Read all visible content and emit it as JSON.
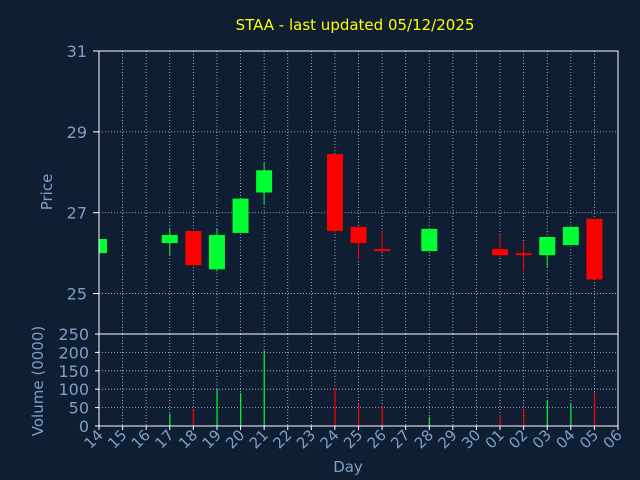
{
  "colors": {
    "background": "#0f1e33",
    "plot_border": "#ffffff",
    "grid": "#bfc8d6",
    "title": "#ffff00",
    "axis_text": "#7f9fc8",
    "up": "#00ff33",
    "down": "#ff0000"
  },
  "chart_data": [
    {
      "type": "candlestick",
      "title": "STAA - last updated 05/12/2025",
      "xlabel": "Day",
      "ylabel": "Price",
      "ylim": [
        24,
        31
      ],
      "yticks": [
        25,
        27,
        29,
        31
      ],
      "grid": true,
      "categories": [
        "14",
        "15",
        "16",
        "17",
        "18",
        "19",
        "20",
        "21",
        "22",
        "23",
        "24",
        "25",
        "26",
        "27",
        "28",
        "29",
        "30",
        "01",
        "02",
        "03",
        "04",
        "05",
        "06"
      ],
      "candles": [
        {
          "i": 0,
          "open": 26.0,
          "close": 26.35,
          "high": 26.35,
          "low": 26.0
        },
        {
          "i": 3,
          "open": 26.25,
          "close": 26.45,
          "high": 26.6,
          "low": 25.95
        },
        {
          "i": 4,
          "open": 26.55,
          "close": 25.7,
          "high": 26.55,
          "low": 25.7
        },
        {
          "i": 5,
          "open": 25.6,
          "close": 26.45,
          "high": 26.6,
          "low": 25.55
        },
        {
          "i": 6,
          "open": 26.5,
          "close": 27.35,
          "high": 27.35,
          "low": 26.5
        },
        {
          "i": 7,
          "open": 27.5,
          "close": 28.05,
          "high": 28.25,
          "low": 27.2
        },
        {
          "i": 10,
          "open": 28.45,
          "close": 26.55,
          "high": 28.45,
          "low": 26.5
        },
        {
          "i": 11,
          "open": 26.65,
          "close": 26.25,
          "high": 26.65,
          "low": 25.85
        },
        {
          "i": 12,
          "open": 26.1,
          "close": 26.05,
          "high": 26.55,
          "low": 26.05
        },
        {
          "i": 14,
          "open": 26.05,
          "close": 26.6,
          "high": 26.6,
          "low": 26.05
        },
        {
          "i": 17,
          "open": 26.1,
          "close": 25.95,
          "high": 26.45,
          "low": 25.9
        },
        {
          "i": 18,
          "open": 26.0,
          "close": 25.95,
          "high": 26.3,
          "low": 25.55
        },
        {
          "i": 19,
          "open": 25.95,
          "close": 26.4,
          "high": 26.4,
          "low": 25.65
        },
        {
          "i": 20,
          "open": 26.2,
          "close": 26.65,
          "high": 26.65,
          "low": 26.2
        },
        {
          "i": 21,
          "open": 26.85,
          "close": 25.35,
          "high": 26.85,
          "low": 25.35
        }
      ]
    },
    {
      "type": "bar",
      "ylabel": "Volume (0000)",
      "ylim": [
        0,
        250
      ],
      "yticks": [
        0,
        50,
        100,
        150,
        200,
        250
      ],
      "grid": true,
      "categories": [
        "14",
        "15",
        "16",
        "17",
        "18",
        "19",
        "20",
        "21",
        "22",
        "23",
        "24",
        "25",
        "26",
        "27",
        "28",
        "29",
        "30",
        "01",
        "02",
        "03",
        "04",
        "05",
        "06"
      ],
      "bars": [
        {
          "i": 0,
          "value": 8,
          "dir": "up"
        },
        {
          "i": 3,
          "value": 33,
          "dir": "up"
        },
        {
          "i": 4,
          "value": 45,
          "dir": "down"
        },
        {
          "i": 5,
          "value": 100,
          "dir": "up"
        },
        {
          "i": 6,
          "value": 90,
          "dir": "up"
        },
        {
          "i": 7,
          "value": 205,
          "dir": "up"
        },
        {
          "i": 10,
          "value": 105,
          "dir": "down"
        },
        {
          "i": 11,
          "value": 60,
          "dir": "down"
        },
        {
          "i": 12,
          "value": 55,
          "dir": "down"
        },
        {
          "i": 14,
          "value": 25,
          "dir": "up"
        },
        {
          "i": 17,
          "value": 30,
          "dir": "down"
        },
        {
          "i": 18,
          "value": 45,
          "dir": "down"
        },
        {
          "i": 19,
          "value": 68,
          "dir": "up"
        },
        {
          "i": 20,
          "value": 60,
          "dir": "up"
        },
        {
          "i": 21,
          "value": 92,
          "dir": "down"
        }
      ]
    }
  ]
}
